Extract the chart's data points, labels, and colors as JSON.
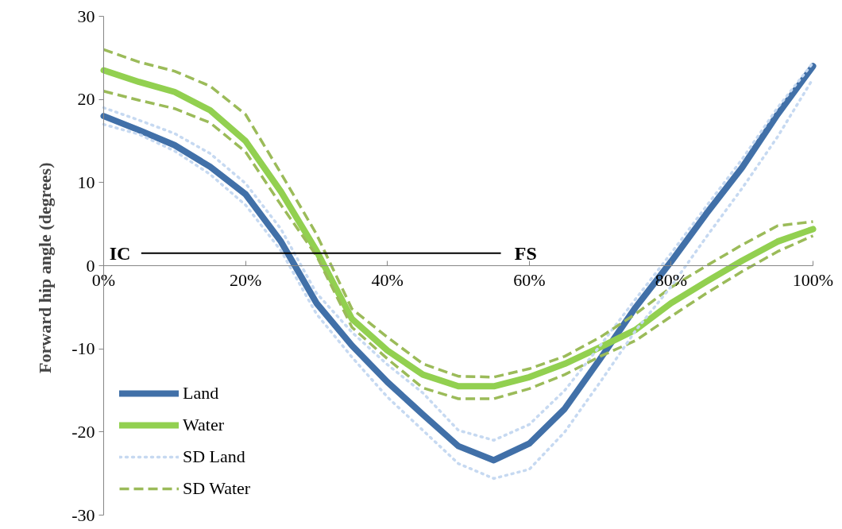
{
  "chart_data": {
    "type": "line",
    "ylabel": "Forward  hip angle (degrees)",
    "x": [
      0,
      5,
      10,
      15,
      20,
      25,
      30,
      35,
      40,
      45,
      50,
      55,
      60,
      65,
      70,
      75,
      80,
      85,
      90,
      95,
      100
    ],
    "xlim": [
      0,
      100
    ],
    "ylim": [
      -30,
      30
    ],
    "xticks": [
      {
        "value": 0,
        "label": "0%"
      },
      {
        "value": 20,
        "label": "20%"
      },
      {
        "value": 40,
        "label": "40%"
      },
      {
        "value": 60,
        "label": "60%"
      },
      {
        "value": 80,
        "label": "80%"
      },
      {
        "value": 100,
        "label": "100%"
      }
    ],
    "yticks": [
      -30,
      -20,
      -10,
      0,
      10,
      20,
      30
    ],
    "grid": false,
    "legend": "bottom left",
    "marker": "none",
    "series": [
      {
        "name": "Land",
        "color": "#4170a8",
        "line_style": "solid",
        "values": [
          18,
          16.3,
          14.5,
          11.9,
          8.6,
          2.9,
          -4.5,
          -9.6,
          -14,
          -17.9,
          -21.7,
          -23.4,
          -21.4,
          -17.2,
          -11.2,
          -5,
          0.5,
          6.3,
          11.8,
          18.2,
          24
        ]
      },
      {
        "name": "Water",
        "color": "#92d050",
        "line_style": "solid",
        "values": [
          23.5,
          22.1,
          20.9,
          18.7,
          15,
          8.9,
          1.8,
          -6.4,
          -10.2,
          -13.1,
          -14.5,
          -14.5,
          -13.4,
          -11.8,
          -9.8,
          -7.7,
          -4.5,
          -1.9,
          0.6,
          2.9,
          4.4
        ]
      },
      {
        "name": "SD Land",
        "color": "#c6d9f1",
        "line_style": "dotted",
        "values": [
          19,
          17.5,
          15.9,
          13.5,
          9.9,
          4.4,
          -3.3,
          -8,
          -11.9,
          -15.3,
          -19.8,
          -21,
          -19.1,
          -15,
          -9.6,
          -4,
          1.5,
          7.2,
          12.8,
          19,
          24.4
        ]
      },
      {
        "name": "SD Water",
        "color": "#9bbb59",
        "line_style": "dashed",
        "values": [
          26,
          24.5,
          23.4,
          21.6,
          18.2,
          11.1,
          3.8,
          -5.2,
          -8.6,
          -11.8,
          -13.3,
          -13.4,
          -12.4,
          -10.9,
          -8.6,
          -5.8,
          -2.6,
          0,
          2.5,
          4.8,
          5.3
        ]
      },
      {
        "color": "#9bbb59",
        "line_style": "dashed",
        "values": [
          21,
          19.9,
          18.9,
          17.2,
          13.7,
          7.3,
          1.2,
          -7.4,
          -11.2,
          -14.7,
          -16,
          -16,
          -14.8,
          -13.1,
          -10.9,
          -9,
          -6.1,
          -3.3,
          -0.7,
          1.7,
          3.6
        ]
      },
      {
        "color": "#c6d9f1",
        "line_style": "dotted",
        "values": [
          17,
          15.8,
          13.8,
          11,
          7.3,
          1.8,
          -5.8,
          -11,
          -15.8,
          -19.8,
          -23.8,
          -25.6,
          -24.5,
          -20,
          -14,
          -7.8,
          -2.5,
          3.5,
          9.3,
          15.5,
          22.5
        ]
      }
    ],
    "annotations": [
      "IC",
      "FS"
    ]
  }
}
